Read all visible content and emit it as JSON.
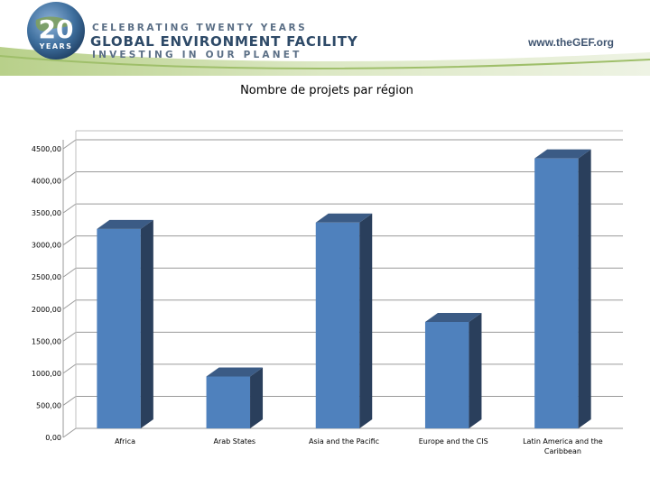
{
  "header": {
    "logo_number": "20",
    "logo_years": "YEARS",
    "tagline_top": "CELEBRATING TWENTY YEARS",
    "org_name": "GLOBAL ENVIRONMENT FACILITY",
    "tagline_bottom": "INVESTING IN OUR PLANET",
    "url": "www.theGEF.org"
  },
  "colors": {
    "bar_front": "#4f81bd",
    "bar_side": "#2a3f5c",
    "bar_top": "#3b5b85"
  },
  "chart_data": {
    "type": "bar",
    "title": "Nombre de projets par région",
    "categories": [
      "Africa",
      "Arab States",
      "Asia and the Pacific",
      "Europe and the CIS",
      "Latin America and the Caribbean"
    ],
    "category_lines": [
      [
        "Africa"
      ],
      [
        "Arab States"
      ],
      [
        "Asia and the Pacific"
      ],
      [
        "Europe and the CIS"
      ],
      [
        "Latin America and the",
        "Caribbean"
      ]
    ],
    "values": [
      3250,
      950,
      3350,
      1800,
      4350
    ],
    "ylim": [
      0,
      4500
    ],
    "yticks": [
      0,
      500,
      1000,
      1500,
      2000,
      2500,
      3000,
      3500,
      4000,
      4500
    ],
    "ytick_labels": [
      "0,00",
      "500,00",
      "1000,00",
      "1500,00",
      "2000,00",
      "2500,00",
      "3000,00",
      "3500,00",
      "4000,00",
      "4500,00"
    ],
    "grid": true,
    "style": "3d-column"
  }
}
